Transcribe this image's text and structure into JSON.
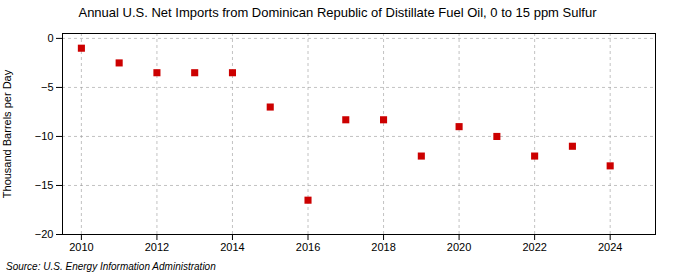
{
  "chart_data": {
    "type": "scatter",
    "title": "Annual U.S. Net Imports from Dominican Republic of Distillate Fuel Oil, 0 to 15 ppm Sulfur",
    "ylabel": "Thousand Barrels per Day",
    "source": "Source: U.S. Energy Information Administration",
    "x": [
      2010,
      2011,
      2012,
      2013,
      2014,
      2015,
      2016,
      2017,
      2018,
      2019,
      2020,
      2021,
      2022,
      2023,
      2024
    ],
    "values": [
      -1.0,
      -2.5,
      -3.5,
      -3.5,
      -3.5,
      -7.0,
      -16.5,
      -8.3,
      -8.3,
      -12.0,
      -9.0,
      -10.0,
      -12.0,
      -11.0,
      -13.0
    ],
    "xlim": [
      2009.5,
      2025.2
    ],
    "ylim": [
      -20,
      0.5
    ],
    "xticks": [
      2010,
      2012,
      2014,
      2016,
      2018,
      2020,
      2022,
      2024
    ],
    "yticks": [
      0,
      -5,
      -10,
      -15,
      -20
    ],
    "color": "#CC0000",
    "marker": "square",
    "grid": true
  }
}
